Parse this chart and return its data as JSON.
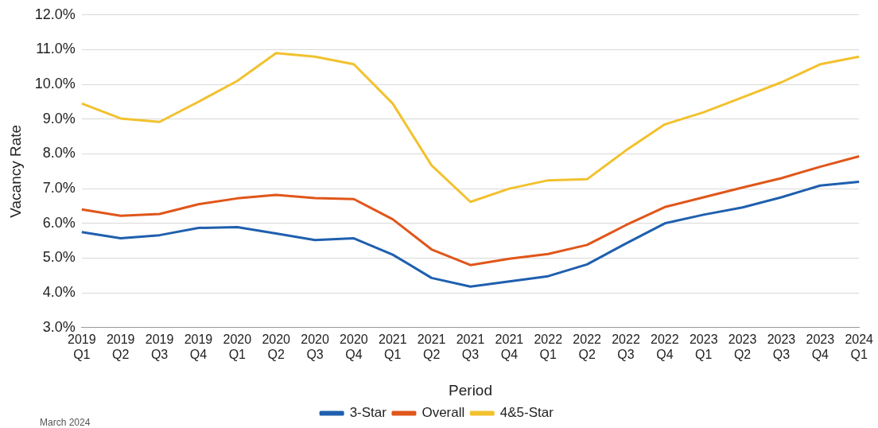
{
  "chart_data": {
    "type": "line",
    "xlabel": "Period",
    "ylabel": "Vacancy Rate",
    "categories": [
      "2019 Q1",
      "2019 Q2",
      "2019 Q3",
      "2019 Q4",
      "2020 Q1",
      "2020 Q2",
      "2020 Q3",
      "2020 Q4",
      "2021 Q1",
      "2021 Q2",
      "2021 Q3",
      "2021 Q4",
      "2022 Q1",
      "2022 Q2",
      "2022 Q3",
      "2022 Q4",
      "2023 Q1",
      "2023 Q2",
      "2023 Q3",
      "2023 Q4",
      "2024 Q1"
    ],
    "series": [
      {
        "name": "3-Star",
        "color": "#1f5fae",
        "values": [
          5.75,
          5.57,
          5.66,
          5.87,
          5.89,
          5.71,
          5.52,
          5.57,
          5.1,
          4.43,
          4.18,
          4.33,
          4.48,
          4.82,
          5.42,
          6.0,
          6.25,
          6.46,
          6.75,
          7.09,
          7.2
        ]
      },
      {
        "name": "Overall",
        "color": "#e0561a",
        "values": [
          6.4,
          6.22,
          6.27,
          6.55,
          6.72,
          6.82,
          6.73,
          6.7,
          6.12,
          5.25,
          4.8,
          4.98,
          5.12,
          5.38,
          5.95,
          6.47,
          6.75,
          7.03,
          7.3,
          7.63,
          7.93
        ]
      },
      {
        "name": "4&5-Star",
        "color": "#f2c12e",
        "values": [
          9.45,
          9.02,
          8.92,
          9.5,
          10.1,
          10.9,
          10.8,
          10.58,
          9.45,
          7.67,
          6.62,
          7.0,
          7.24,
          7.27,
          8.1,
          8.85,
          9.2,
          9.63,
          10.06,
          10.58,
          10.8
        ]
      }
    ],
    "ylim": [
      3,
      12
    ],
    "yticks": [
      {
        "value": 3,
        "label": "3.0%"
      },
      {
        "value": 4,
        "label": "4.0%"
      },
      {
        "value": 5,
        "label": "5.0%"
      },
      {
        "value": 6,
        "label": "6.0%"
      },
      {
        "value": 7,
        "label": "7.0%"
      },
      {
        "value": 8,
        "label": "8.0%"
      },
      {
        "value": 9,
        "label": "9.0%"
      },
      {
        "value": 10,
        "label": "10.0%"
      },
      {
        "value": 11,
        "label": "11.0%"
      },
      {
        "value": 12,
        "label": "12.0%"
      }
    ],
    "grid": "y",
    "legend": "bottom",
    "marker": "none",
    "line_style": "solid",
    "annotations": [
      "March 2024"
    ]
  }
}
